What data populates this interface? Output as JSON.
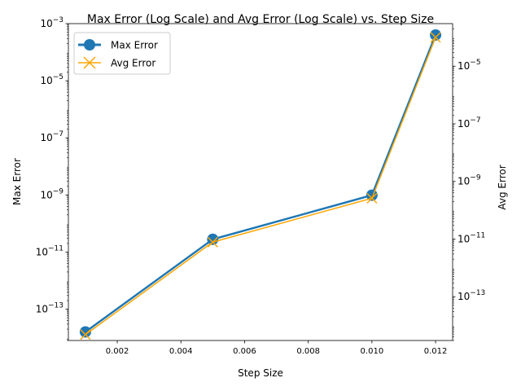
{
  "chart_data": {
    "type": "line",
    "title": "Max Error (Log Scale) and Avg Error (Log Scale) vs. Step Size",
    "xlabel": "Step Size",
    "ylabel_left": "Max Error",
    "ylabel_right": "Avg Error",
    "xlim": [
      0.000465,
      0.012535
    ],
    "ylim_left": [
      8e-15,
      0.001
    ],
    "ylim_right": [
      3e-15,
      0.0003
    ],
    "yscale": "log",
    "grid": false,
    "legend_position": "top-left",
    "x": [
      0.001,
      0.005,
      0.01,
      0.012
    ],
    "series": [
      {
        "name": "Max Error",
        "axis": "left",
        "color": "#1f77b4",
        "marker": "circle",
        "values": [
          1.6e-14,
          2.8e-11,
          9.8e-10,
          0.0004
        ]
      },
      {
        "name": "Avg Error",
        "axis": "right",
        "color": "#ffa500",
        "marker": "x",
        "values": [
          4.8e-15,
          7.8e-12,
          2.6e-10,
          0.0001
        ]
      }
    ],
    "x_ticks": [
      {
        "value": 0.002,
        "label": "0.002"
      },
      {
        "value": 0.004,
        "label": "0.004"
      },
      {
        "value": 0.006,
        "label": "0.006"
      },
      {
        "value": 0.008,
        "label": "0.008"
      },
      {
        "value": 0.01,
        "label": "0.010"
      },
      {
        "value": 0.012,
        "label": "0.012"
      }
    ],
    "y_ticks_left": [
      {
        "value": 1e-13,
        "exp": "−13"
      },
      {
        "value": 1e-11,
        "exp": "−11"
      },
      {
        "value": 1e-09,
        "exp": "−9"
      },
      {
        "value": 1e-07,
        "exp": "−7"
      },
      {
        "value": 1e-05,
        "exp": "−5"
      },
      {
        "value": 0.001,
        "exp": "−3"
      }
    ],
    "y_ticks_right": [
      {
        "value": 1e-13,
        "exp": "−13"
      },
      {
        "value": 1e-11,
        "exp": "−11"
      },
      {
        "value": 1e-09,
        "exp": "−9"
      },
      {
        "value": 1e-07,
        "exp": "−7"
      },
      {
        "value": 1e-05,
        "exp": "−5"
      }
    ],
    "tick_base": "10"
  }
}
